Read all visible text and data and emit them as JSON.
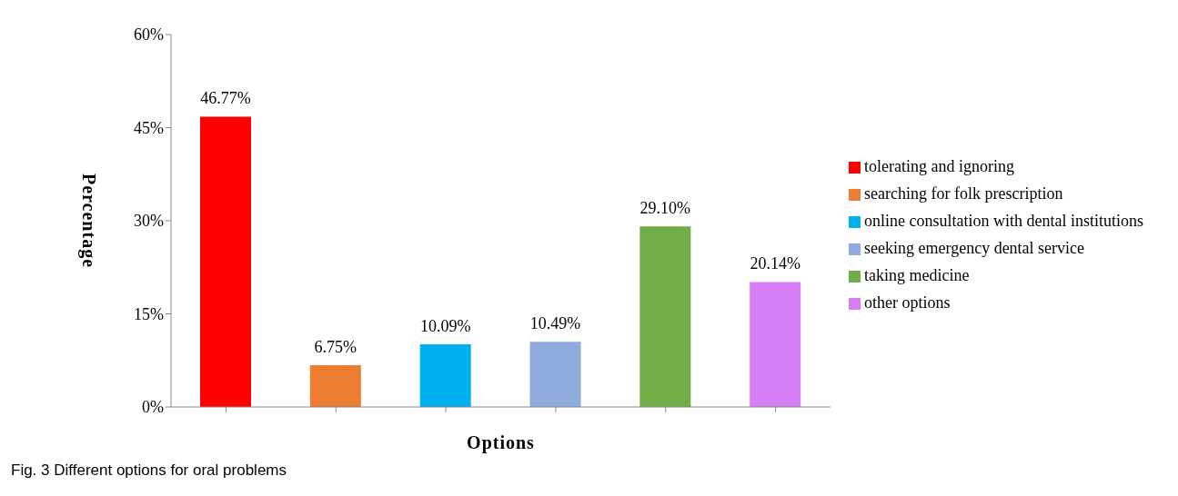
{
  "chart_data": {
    "type": "bar",
    "title": "Fig. 3 Different options for oral problems",
    "xlabel": "Options",
    "ylabel": "Percentage",
    "categories": [
      null,
      null,
      null,
      null,
      null,
      null
    ],
    "stacked": true,
    "series": [
      {
        "name": "tolerating and ignoring",
        "color": "#ff0000",
        "values": [
          46.77,
          null,
          null,
          null,
          null,
          null
        ],
        "value_labels": [
          "46.77%",
          null,
          null,
          null,
          null,
          null
        ]
      },
      {
        "name": "searching for folk prescription",
        "color": "#ed7d31",
        "values": [
          null,
          6.75,
          null,
          null,
          null,
          null
        ],
        "value_labels": [
          null,
          "6.75%",
          null,
          null,
          null,
          null
        ]
      },
      {
        "name": "online consultation with dental institutions",
        "color": "#00b0f0",
        "values": [
          null,
          null,
          10.09,
          null,
          null,
          null
        ],
        "value_labels": [
          null,
          null,
          "10.09%",
          null,
          null,
          null
        ]
      },
      {
        "name": "seeking emergency dental service",
        "color": "#8faadc",
        "values": [
          null,
          null,
          null,
          10.49,
          null,
          null
        ],
        "value_labels": [
          null,
          null,
          null,
          "10.49%",
          null,
          null
        ]
      },
      {
        "name": "taking medicine",
        "color": "#70ad47",
        "values": [
          null,
          null,
          null,
          null,
          29.1,
          null
        ],
        "value_labels": [
          null,
          null,
          null,
          null,
          "29.10%",
          null
        ]
      },
      {
        "name": "other options",
        "color": "#d67ff5",
        "values": [
          null,
          null,
          null,
          null,
          null,
          20.14
        ],
        "value_labels": [
          null,
          null,
          null,
          null,
          null,
          "20.14%"
        ]
      }
    ],
    "ylim": [
      0,
      60
    ],
    "yticks": [
      {
        "value": 0,
        "label": "0%"
      },
      {
        "value": 15,
        "label": "15%"
      },
      {
        "value": 30,
        "label": "30%"
      },
      {
        "value": 45,
        "label": "45%"
      },
      {
        "value": 60,
        "label": "60%"
      }
    ],
    "grid": false,
    "legend": "right"
  }
}
